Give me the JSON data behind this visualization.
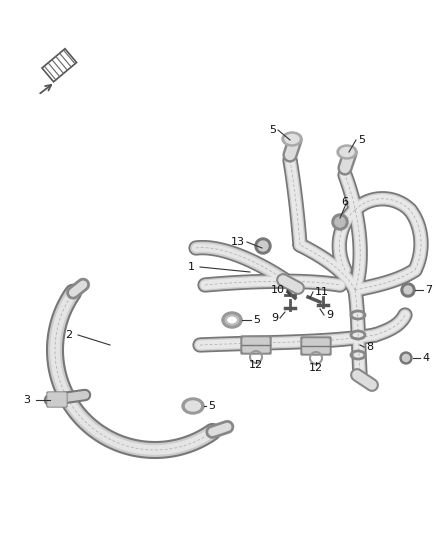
{
  "background_color": "#ffffff",
  "fig_width": 4.38,
  "fig_height": 5.33,
  "dpi": 100,
  "hose_outer_color": "#888888",
  "hose_mid_color": "#bbbbbb",
  "hose_inner_color": "#e8e8e8",
  "hose_line_color": "#666666",
  "label_color": "#111111",
  "leader_color": "#333333",
  "lw_outer": 9.0,
  "lw_mid": 7.5,
  "lw_inner": 6.0
}
